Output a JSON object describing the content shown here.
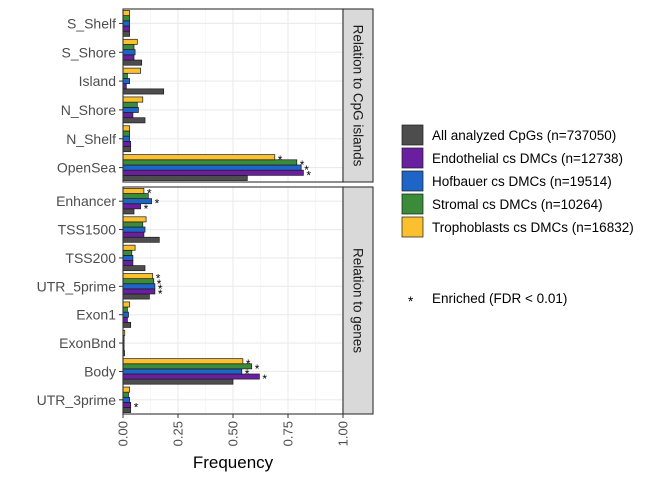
{
  "chart_data": {
    "type": "bar",
    "orientation": "horizontal",
    "xlabel": "Frequency",
    "xlim": [
      0,
      1
    ],
    "xticks": [
      "0.00",
      "0.25",
      "0.50",
      "0.75",
      "1.00"
    ],
    "grid": true,
    "legend_position": "right",
    "series": [
      {
        "name": "All analyzed CpGs (n=737050)",
        "color": "#4d4d4d"
      },
      {
        "name": "Endothelial cs DMCs (n=12738)",
        "color": "#6a1fa0"
      },
      {
        "name": "Hofbauer cs DMCs (n=19514)",
        "color": "#1f65c8"
      },
      {
        "name": "Stromal cs DMCs (n=10264)",
        "color": "#3a8c3a"
      },
      {
        "name": "Trophoblasts cs DMCs (n=16832)",
        "color": "#fbc02d"
      }
    ],
    "panels": [
      {
        "strip": "Relation to CpG islands",
        "categories": [
          "S_Shelf",
          "S_Shore",
          "Island",
          "N_Shore",
          "N_Shelf",
          "OpenSea"
        ],
        "values": {
          "S_Shelf": [
            0.03,
            0.03,
            0.03,
            0.03,
            0.03
          ],
          "S_Shore": [
            0.085,
            0.05,
            0.055,
            0.05,
            0.065
          ],
          "Island": [
            0.185,
            0.015,
            0.03,
            0.02,
            0.08
          ],
          "N_Shore": [
            0.1,
            0.045,
            0.07,
            0.065,
            0.09
          ],
          "N_Shelf": [
            0.035,
            0.035,
            0.03,
            0.03,
            0.03
          ],
          "OpenSea": [
            0.565,
            0.82,
            0.81,
            0.79,
            0.69
          ]
        },
        "stars": {
          "OpenSea": [
            false,
            true,
            true,
            true,
            true
          ]
        }
      },
      {
        "strip": "Relation to genes",
        "categories": [
          "Enhancer",
          "TSS1500",
          "TSS200",
          "UTR_5prime",
          "Exon1",
          "ExonBnd",
          "Body",
          "UTR_3prime"
        ],
        "values": {
          "Enhancer": [
            0.05,
            0.08,
            0.13,
            0.115,
            0.095
          ],
          "TSS1500": [
            0.165,
            0.095,
            0.1,
            0.09,
            0.105
          ],
          "TSS200": [
            0.1,
            0.045,
            0.045,
            0.04,
            0.055
          ],
          "UTR_5prime": [
            0.12,
            0.145,
            0.145,
            0.14,
            0.135
          ],
          "Exon1": [
            0.035,
            0.02,
            0.025,
            0.02,
            0.03
          ],
          "ExonBnd": [
            0.007,
            0.005,
            0.005,
            0.005,
            0.008
          ],
          "Body": [
            0.5,
            0.62,
            0.54,
            0.585,
            0.545
          ],
          "UTR_3prime": [
            0.035,
            0.035,
            0.03,
            0.025,
            0.03
          ]
        },
        "stars": {
          "Enhancer": [
            false,
            true,
            true,
            false,
            true
          ],
          "UTR_5prime": [
            false,
            true,
            true,
            true,
            true
          ],
          "Body": [
            false,
            true,
            true,
            true,
            true
          ],
          "UTR_3prime": [
            false,
            true,
            false,
            false,
            false
          ]
        }
      }
    ],
    "star_legend": {
      "symbol": "*",
      "label": "Enriched (FDR < 0.01)"
    }
  }
}
